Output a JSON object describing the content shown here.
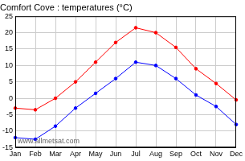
{
  "chart_data": {
    "type": "line",
    "title": "Comfort Cove : temperatures (°C)",
    "annotations": [
      "www.allmetsat.com"
    ],
    "categories": [
      "Jan",
      "Feb",
      "Mar",
      "Apr",
      "May",
      "Jun",
      "Jul",
      "Aug",
      "Sep",
      "Oct",
      "Nov",
      "Dec"
    ],
    "series": [
      {
        "color": "#ff0000",
        "marker": "circle",
        "values": [
          -3,
          -3.5,
          0,
          5,
          11,
          17,
          21.5,
          20,
          15.5,
          9,
          4.5,
          -0.5
        ]
      },
      {
        "color": "#0000ff",
        "marker": "circle",
        "values": [
          -12,
          -12.5,
          -8.5,
          -3,
          1.5,
          6,
          11,
          10,
          6,
          1,
          -2.5,
          -8
        ]
      }
    ],
    "ylim": [
      -15,
      25
    ],
    "yticks": [
      -15,
      -10,
      -5,
      0,
      5,
      10,
      15,
      20,
      25
    ],
    "grid": true
  }
}
